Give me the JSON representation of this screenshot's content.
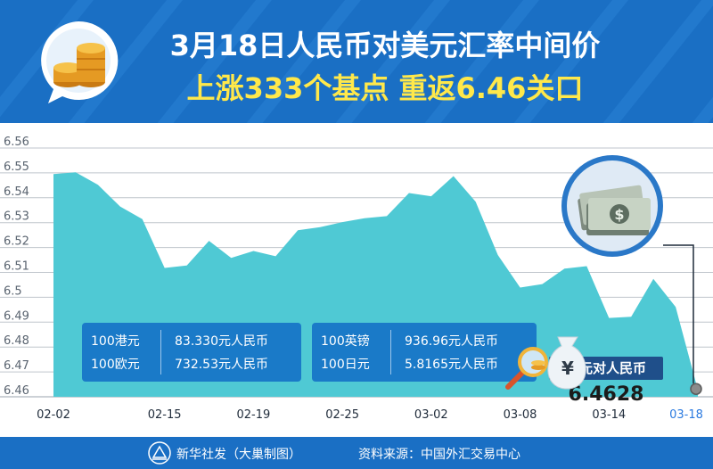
{
  "header": {
    "title_line1": "3月18日人民币对美元汇率中间价",
    "title_line2": "上涨333个基点  重返6.46关口"
  },
  "callout": {
    "label": "美元对人民币",
    "value": "6.4628"
  },
  "info_boxes": [
    {
      "rows": [
        {
          "unit": "100港元",
          "value": "83.330元人民币"
        },
        {
          "unit": "100欧元",
          "value": "732.53元人民币"
        }
      ]
    },
    {
      "rows": [
        {
          "unit": "100英镑",
          "value": "936.96元人民币"
        },
        {
          "unit": "100日元",
          "value": "5.8165元人民币"
        }
      ]
    }
  ],
  "footer": {
    "source_left": "新华社发（大巢制图）",
    "source_right": "资料来源：中国外汇交易中心"
  },
  "colors": {
    "header": "#1a6fc4",
    "area": "#4fc9d4",
    "yellow_text": "#ffe84a",
    "highlight_label": "#2a7ae0"
  },
  "icons": [
    "coin-stack-icon",
    "money-bills-icon",
    "money-bag-icon",
    "magnifier-icon",
    "xinhua-logo-icon"
  ],
  "chart_data": {
    "type": "area",
    "title": "",
    "xlabel": "",
    "ylabel": "",
    "ylim": [
      6.46,
      6.56
    ],
    "y_ticks": [
      "6.56",
      "6.55",
      "6.54",
      "6.53",
      "6.52",
      "6.51",
      "6.5",
      "6.49",
      "6.48",
      "6.47",
      "6.46"
    ],
    "x_labels": [
      "02-02",
      "02-15",
      "02-19",
      "02-25",
      "03-02",
      "03-08",
      "03-14",
      "03-18"
    ],
    "grid": true,
    "x": [
      "02-02",
      "02-03",
      "02-04",
      "02-05",
      "02-06",
      "02-15",
      "02-16",
      "02-17",
      "02-18",
      "02-19",
      "02-22",
      "02-23",
      "02-24",
      "02-25",
      "02-26",
      "02-29",
      "03-01",
      "03-02",
      "03-03",
      "03-04",
      "03-07",
      "03-08",
      "03-09",
      "03-10",
      "03-11",
      "03-14",
      "03-15",
      "03-16",
      "03-17",
      "03-18"
    ],
    "series": [
      {
        "values": [
          6.5495,
          6.5502,
          6.5452,
          6.5365,
          6.5314,
          6.5118,
          6.5128,
          6.5227,
          6.5158,
          6.5186,
          6.5165,
          6.5269,
          6.5282,
          6.5302,
          6.5318,
          6.5326,
          6.5419,
          6.5406,
          6.5487,
          6.5384,
          6.517,
          6.5039,
          6.5053,
          6.5115,
          6.5125,
          6.4917,
          6.4922,
          6.5074,
          6.4961,
          6.4628
        ]
      }
    ]
  }
}
